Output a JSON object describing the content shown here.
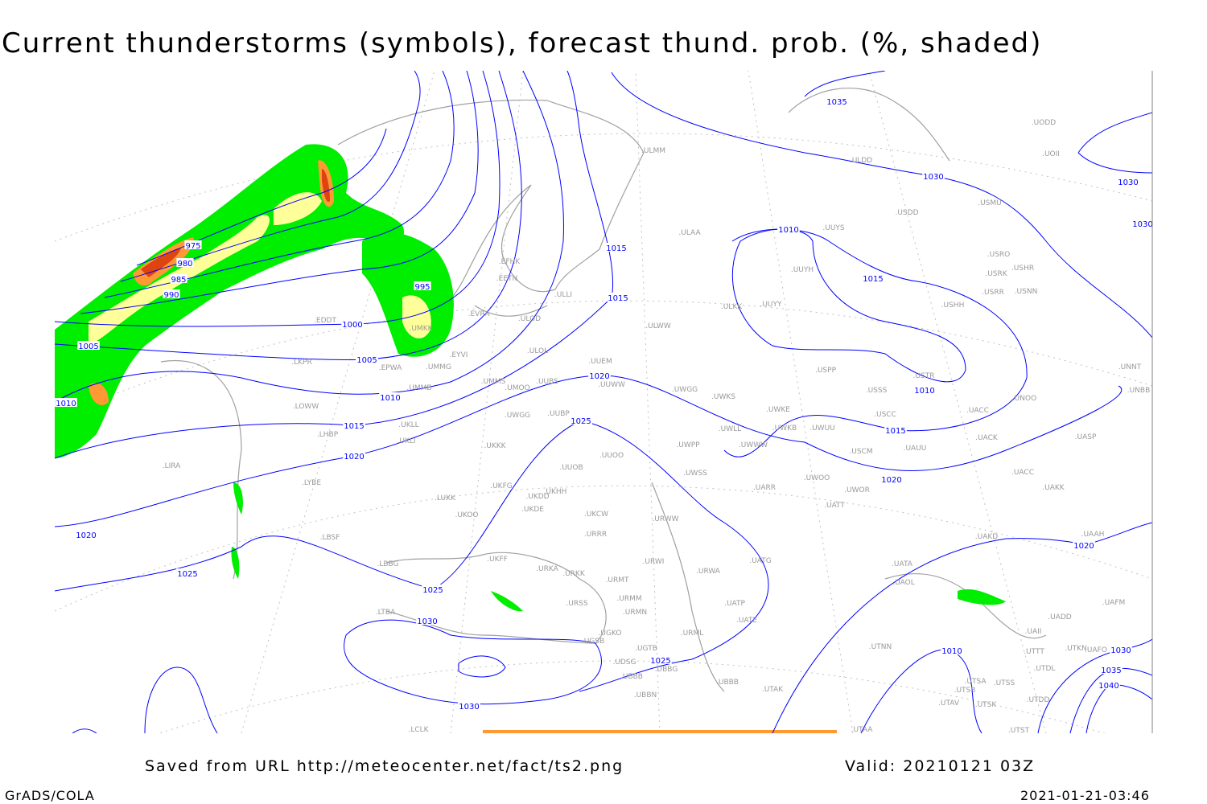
{
  "title": "Current thunderstorms (symbols), forecast thund. prob. (%, shaded)",
  "footer": {
    "source": "Saved from URL http://meteocenter.net/fact/ts2.png",
    "valid": "Valid: 20210121 03Z",
    "software": "GrADS/COLA",
    "timestamp": "2021-01-21-03:46"
  },
  "colors": {
    "isobar": "#0000ff",
    "coastline": "#a0a0a0",
    "prob_low": "#00ee00",
    "prob_mid": "#ffff99",
    "prob_high": "#ff9933",
    "prob_max": "#dd4411"
  },
  "isobar_labels": [
    "975",
    "980",
    "985",
    "990",
    "995",
    "1000",
    "1005",
    "1005",
    "1010",
    "1010",
    "1010",
    "1010",
    "1010",
    "1015",
    "1015",
    "1015",
    "1015",
    "1015",
    "1020",
    "1020",
    "1020",
    "1020",
    "1020",
    "1025",
    "1025",
    "1025",
    "1025",
    "1030",
    "1030",
    "1030",
    "1030",
    "1030",
    "1030",
    "1035",
    "1035",
    "1040"
  ],
  "stations": [
    "EDDT",
    "LKPR",
    "EPWA",
    "UMMG",
    "UMMB",
    "EYVI",
    "UMKK",
    "EVRA",
    "EFHK",
    "EETN",
    "ULLI",
    "ULOD",
    "ULOL",
    "UUEM",
    "UMMS",
    "UMOO",
    "UUBS",
    "UUWW",
    "LOWW",
    "LHBP",
    "UKLL",
    "UKLI",
    "UKKK",
    "UUBP",
    "UWGG",
    "LIRA",
    "LYBE",
    "UUOO",
    "UUOB",
    "UKHH",
    "UKDD",
    "UKFG",
    "LUKK",
    "UKOO",
    "UKDE",
    "UKCW",
    "URRR",
    "LBSF",
    "UKFF",
    "URKA",
    "URKK",
    "URWI",
    "URMT",
    "URMM",
    "URSS",
    "URMN",
    "LBBG",
    "LTBA",
    "UGKO",
    "UGSB",
    "UGTB",
    "UDSG",
    "UBBG",
    "UBBB",
    "UBBN",
    "LCLK",
    "ULMM",
    "ULAA",
    "ULWW",
    "UWGG",
    "UWKS",
    "UWKE",
    "UWLL",
    "UWKB",
    "UWUU",
    "UWPP",
    "UWWW",
    "UWSS",
    "UARR",
    "URWW",
    "UWOO",
    "UWOR",
    "UATT",
    "USCM",
    "UAUU",
    "USSS",
    "USCC",
    "USTR",
    "USPP",
    "UUYY",
    "UUYH",
    "ULKK",
    "UUYS",
    "ULDD",
    "USDD",
    "USMU",
    "USRO",
    "USRK",
    "USHR",
    "USRR",
    "USNN",
    "USHH",
    "UNOO",
    "UACC",
    "UACK",
    "UASP",
    "UNNT",
    "UNBB",
    "UACC",
    "UAKK",
    "UAKD",
    "UAAH",
    "UATA",
    "UAOL",
    "UATG",
    "URWA",
    "UATP",
    "UATE",
    "URML",
    "UBBB",
    "UTAK",
    "UTNN",
    "UAII",
    "UTTT",
    "UTKN",
    "UAFO",
    "UAFM",
    "UADD",
    "UTDL",
    "UTSA",
    "UTSS",
    "UTSB",
    "UTAV",
    "UTSK",
    "UTDD",
    "UTST",
    "UTAA",
    "UOII",
    "UODD"
  ]
}
